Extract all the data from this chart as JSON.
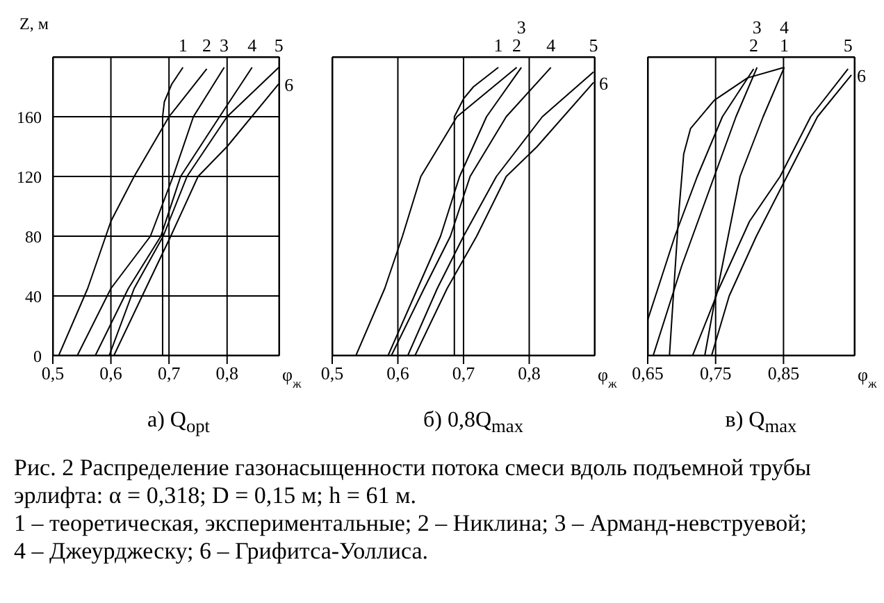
{
  "chart_data": [
    {
      "type": "line",
      "subtitle": "а) Q$_{opt}$",
      "ylabel": "Z, м",
      "xlabel": "φ$_{ж}$",
      "xlim": [
        0.5,
        0.89
      ],
      "ylim": [
        0,
        200
      ],
      "xticks": [
        {
          "value": 0.5,
          "label": "0,5"
        },
        {
          "value": 0.6,
          "label": "0,6"
        },
        {
          "value": 0.7,
          "label": "0,7"
        },
        {
          "value": 0.8,
          "label": "0,8"
        }
      ],
      "yticks": [
        0,
        40,
        80,
        120,
        160
      ],
      "grid": true,
      "marker": "none",
      "line_style": "solid",
      "annotations": [
        "Рис. 2 Распределение газонасыщенности потока смеси вдоль подъемной трубы эрлифта: α = 0,318; D = 0,15 м; h = 61 м.",
        "1 – теоретическая, экспериментальные; 2 – Никлина; 3 – Арманд-невструевой; 4 – Джеурджеску; 6 – Грифитса-Уоллиса."
      ],
      "series": [
        {
          "name": "1",
          "color": "#000000",
          "x": [
            0.689,
            0.689,
            0.692,
            0.705,
            0.724
          ],
          "values": [
            0,
            160,
            170,
            182,
            193
          ]
        },
        {
          "name": "2",
          "color": "#000000",
          "x": [
            0.51,
            0.56,
            0.6,
            0.64,
            0.7,
            0.765
          ],
          "values": [
            0,
            45,
            90,
            120,
            160,
            192
          ]
        },
        {
          "name": "3",
          "color": "#000000",
          "x": [
            0.542,
            0.6,
            0.668,
            0.707,
            0.742,
            0.795
          ],
          "values": [
            0,
            45,
            80,
            120,
            160,
            193
          ]
        },
        {
          "name": "4",
          "color": "#000000",
          "x": [
            0.573,
            0.63,
            0.686,
            0.72,
            0.787,
            0.843
          ],
          "values": [
            0,
            45,
            80,
            120,
            160,
            193
          ]
        },
        {
          "name": "5",
          "color": "#000000",
          "x": [
            0.597,
            0.64,
            0.69,
            0.731,
            0.8,
            0.889
          ],
          "values": [
            0,
            45,
            80,
            120,
            160,
            193
          ]
        },
        {
          "name": "6",
          "color": "#000000",
          "x": [
            0.605,
            0.66,
            0.703,
            0.75,
            0.8,
            0.889
          ],
          "values": [
            0,
            45,
            80,
            120,
            140,
            182
          ]
        }
      ]
    },
    {
      "type": "line",
      "subtitle": "б) 0,8Q$_{max}$",
      "xlabel": "φ$_{ж}$",
      "xlim": [
        0.5,
        0.9
      ],
      "ylim": [
        0,
        200
      ],
      "xticks": [
        {
          "value": 0.5,
          "label": "0,5"
        },
        {
          "value": 0.6,
          "label": "0,6"
        },
        {
          "value": 0.7,
          "label": "0,7"
        },
        {
          "value": 0.8,
          "label": "0,8"
        }
      ],
      "yticks": [
        0,
        40,
        80,
        120,
        160
      ],
      "tick_labels": "x",
      "grid": true,
      "marker": "none",
      "line_style": "solid",
      "series": [
        {
          "name": "1",
          "color": "#000000",
          "x": [
            0.686,
            0.686,
            0.7,
            0.715,
            0.753
          ],
          "values": [
            0,
            160,
            172,
            180,
            193
          ]
        },
        {
          "name": "2",
          "color": "#000000",
          "x": [
            0.536,
            0.58,
            0.607,
            0.635,
            0.69,
            0.781
          ],
          "values": [
            0,
            45,
            80,
            120,
            160,
            193
          ]
        },
        {
          "name": "3",
          "color": "#000000",
          "x": [
            0.585,
            0.63,
            0.665,
            0.694,
            0.735,
            0.788
          ],
          "values": [
            0,
            45,
            80,
            120,
            160,
            193
          ]
        },
        {
          "name": "4",
          "color": "#000000",
          "x": [
            0.59,
            0.64,
            0.68,
            0.71,
            0.765,
            0.833
          ],
          "values": [
            0,
            45,
            80,
            120,
            160,
            193
          ]
        },
        {
          "name": "5",
          "color": "#000000",
          "x": [
            0.615,
            0.66,
            0.7,
            0.75,
            0.82,
            0.898
          ],
          "values": [
            0,
            45,
            80,
            120,
            160,
            190
          ]
        },
        {
          "name": "6",
          "color": "#000000",
          "x": [
            0.626,
            0.675,
            0.72,
            0.765,
            0.812,
            0.898
          ],
          "values": [
            0,
            45,
            80,
            120,
            140,
            183
          ]
        }
      ]
    },
    {
      "type": "line",
      "subtitle": "в) Q$_{max}$",
      "xlabel": "φ$_{ж}$",
      "xlim": [
        0.65,
        0.955
      ],
      "ylim": [
        0,
        200
      ],
      "xticks": [
        {
          "value": 0.65,
          "label": "0,65"
        },
        {
          "value": 0.75,
          "label": "0,75"
        },
        {
          "value": 0.85,
          "label": "0,85"
        }
      ],
      "yticks": [
        0,
        40,
        80,
        120,
        160
      ],
      "tick_labels": "x",
      "grid": true,
      "marker": "none",
      "line_style": "solid",
      "series": [
        {
          "name": "1",
          "color": "#000000",
          "x": [
            0.682,
            0.696,
            0.703,
            0.713,
            0.748,
            0.797,
            0.851
          ],
          "values": [
            0,
            97,
            135,
            152,
            171,
            186,
            193
          ]
        },
        {
          "name": "2",
          "color": "#000000",
          "x": [
            0.65,
            0.69,
            0.723,
            0.76,
            0.806
          ],
          "values": [
            24,
            80,
            120,
            160,
            192
          ]
        },
        {
          "name": "3",
          "color": "#000000",
          "x": [
            0.658,
            0.7,
            0.748,
            0.78,
            0.811
          ],
          "values": [
            0,
            60,
            120,
            160,
            193
          ]
        },
        {
          "name": "4",
          "color": "#000000",
          "x": [
            0.716,
            0.751,
            0.786,
            0.82,
            0.851
          ],
          "values": [
            0,
            40,
            120,
            160,
            193
          ]
        },
        {
          "name": "5",
          "color": "#000000",
          "x": [
            0.734,
            0.75,
            0.8,
            0.845,
            0.89,
            0.945
          ],
          "values": [
            0,
            40,
            90,
            120,
            160,
            192
          ]
        },
        {
          "name": "6",
          "color": "#000000",
          "x": [
            0.744,
            0.77,
            0.81,
            0.855,
            0.9,
            0.95
          ],
          "values": [
            0,
            40,
            80,
            120,
            160,
            188
          ]
        }
      ]
    }
  ]
}
